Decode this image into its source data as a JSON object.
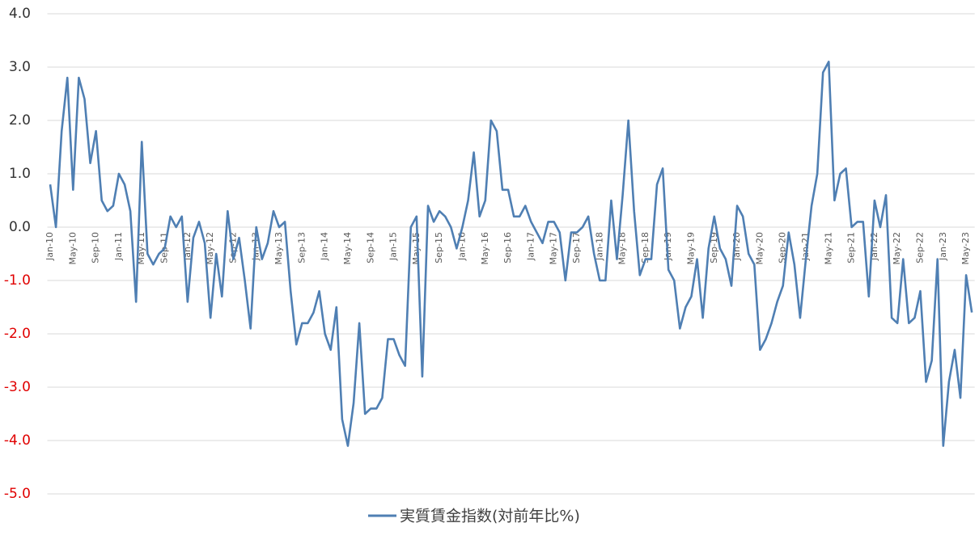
{
  "chart_data": {
    "type": "line",
    "categories": [
      "Jan-10",
      null,
      null,
      null,
      "May-10",
      null,
      null,
      null,
      "Sep-10",
      null,
      null,
      null,
      "Jan-11",
      null,
      null,
      null,
      "May-11",
      null,
      null,
      null,
      "Sep-11",
      null,
      null,
      null,
      "Jan-12",
      null,
      null,
      null,
      "May-12",
      null,
      null,
      null,
      "Sep-12",
      null,
      null,
      null,
      "Jan-13",
      null,
      null,
      null,
      "May-13",
      null,
      null,
      null,
      "Sep-13",
      null,
      null,
      null,
      "Jan-14",
      null,
      null,
      null,
      "May-14",
      null,
      null,
      null,
      "Sep-14",
      null,
      null,
      null,
      "Jan-15",
      null,
      null,
      null,
      "May-15",
      null,
      null,
      null,
      "Sep-15",
      null,
      null,
      null,
      "Jan-16",
      null,
      null,
      null,
      "May-16",
      null,
      null,
      null,
      "Sep-16",
      null,
      null,
      null,
      "Jan-17",
      null,
      null,
      null,
      "May-17",
      null,
      null,
      null,
      "Sep-17",
      null,
      null,
      null,
      "Jan-18",
      null,
      null,
      null,
      "May-18",
      null,
      null,
      null,
      "Sep-18",
      null,
      null,
      null,
      "Jan-19",
      null,
      null,
      null,
      "May-19",
      null,
      null,
      null,
      "Sep-19",
      null,
      null,
      null,
      "Jan-20",
      null,
      null,
      null,
      "May-20",
      null,
      null,
      null,
      "Sep-20",
      null,
      null,
      null,
      "Jan-21",
      null,
      null,
      null,
      "May-21",
      null,
      null,
      null,
      "Sep-21",
      null,
      null,
      null,
      "Jan-22",
      null,
      null,
      null,
      "May-22",
      null,
      null,
      null,
      "Sep-22",
      null,
      null,
      null,
      "Jan-23",
      null,
      null,
      null,
      "May-23",
      null
    ],
    "series": [
      {
        "name": "実質賃金指数(対前年比%)",
        "color": "#4f7fb3",
        "values": [
          0.8,
          0.0,
          1.8,
          2.8,
          0.7,
          2.8,
          2.4,
          1.2,
          1.8,
          0.5,
          0.3,
          0.4,
          1.0,
          0.8,
          0.3,
          -1.4,
          1.6,
          -0.5,
          -0.7,
          -0.5,
          -0.4,
          0.2,
          0.0,
          0.2,
          -1.4,
          -0.2,
          0.1,
          -0.3,
          -1.7,
          -0.5,
          -1.3,
          0.3,
          -0.6,
          -0.2,
          -1.0,
          -1.9,
          0.0,
          -0.6,
          -0.3,
          0.3,
          0.0,
          0.1,
          -1.2,
          -2.2,
          -1.8,
          -1.8,
          -1.6,
          -1.2,
          -2.0,
          -2.3,
          -1.5,
          -3.6,
          -4.1,
          -3.3,
          -1.8,
          -3.5,
          -3.4,
          -3.4,
          -3.2,
          -2.1,
          -2.1,
          -2.4,
          -2.6,
          0.0,
          0.2,
          -2.8,
          0.4,
          0.1,
          0.3,
          0.2,
          0.0,
          -0.4,
          0.0,
          0.5,
          1.4,
          0.2,
          0.5,
          2.0,
          1.8,
          0.7,
          0.7,
          0.2,
          0.2,
          0.4,
          0.1,
          -0.1,
          -0.3,
          0.1,
          0.1,
          -0.1,
          -1.0,
          -0.1,
          -0.1,
          0.0,
          0.2,
          -0.5,
          -1.0,
          -1.0,
          0.5,
          -0.6,
          0.6,
          2.0,
          0.3,
          -0.9,
          -0.6,
          -0.6,
          0.8,
          1.1,
          -0.8,
          -1.0,
          -1.9,
          -1.5,
          -1.3,
          -0.6,
          -1.7,
          -0.4,
          0.2,
          -0.4,
          -0.6,
          -1.1,
          0.4,
          0.2,
          -0.5,
          -0.7,
          -2.3,
          -2.1,
          -1.8,
          -1.4,
          -1.1,
          -0.1,
          -0.7,
          -1.7,
          -0.6,
          0.4,
          1.0,
          2.9,
          3.1,
          0.5,
          1.0,
          1.1,
          0.0,
          0.1,
          0.1,
          -1.3,
          0.5,
          0.0,
          0.6,
          -1.7,
          -1.8,
          -0.6,
          -1.8,
          -1.7,
          -1.2,
          -2.9,
          -2.5,
          -0.6,
          -4.1,
          -2.9,
          -2.3,
          -3.2,
          -0.9,
          -1.6
        ]
      }
    ],
    "ylim": [
      -5,
      4
    ],
    "yticks": [
      {
        "value": -5,
        "label": "-5.0"
      },
      {
        "value": -4,
        "label": "-4.0"
      },
      {
        "value": -3,
        "label": "-3.0"
      },
      {
        "value": -2,
        "label": "-2.0"
      },
      {
        "value": -1,
        "label": "-1.0"
      },
      {
        "value": 0,
        "label": "0.0"
      },
      {
        "value": 1,
        "label": "1.0"
      },
      {
        "value": 2,
        "label": "2.0"
      },
      {
        "value": 3,
        "label": "3.0"
      },
      {
        "value": 4,
        "label": "4.0"
      }
    ],
    "grid": true,
    "negative_tick_color": "#e00000",
    "legend": "bottom"
  }
}
